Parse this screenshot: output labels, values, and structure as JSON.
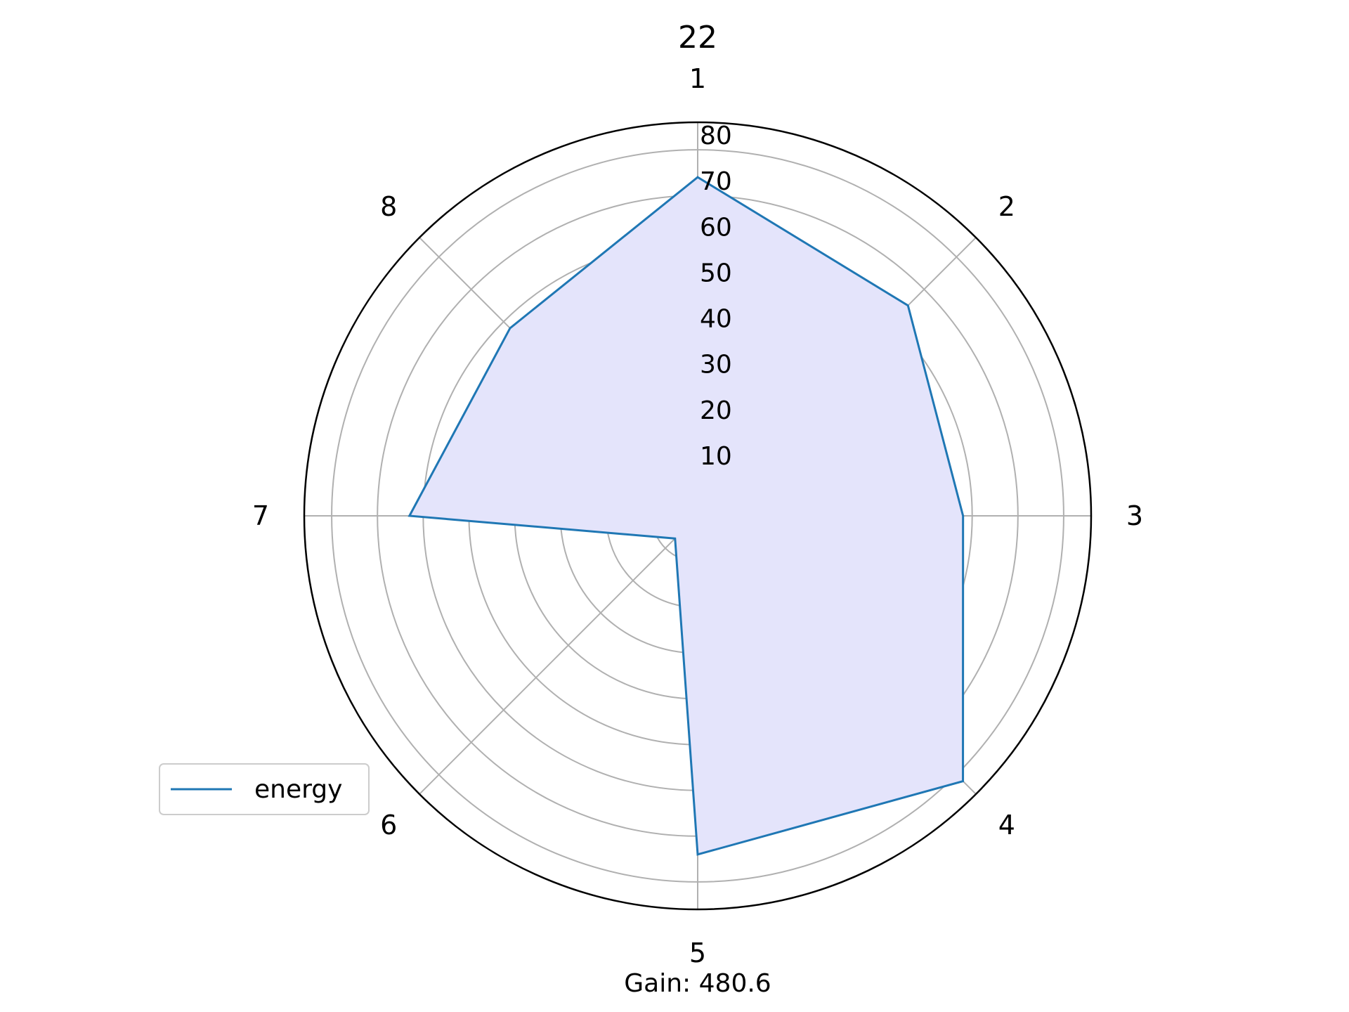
{
  "chart_data": {
    "type": "radar",
    "title": "22",
    "categories": [
      "1",
      "2",
      "3",
      "4",
      "5",
      "6",
      "7",
      "8"
    ],
    "series": [
      {
        "name": "energy",
        "values": [
          74,
          65,
          58,
          82,
          74,
          7,
          63,
          58
        ]
      }
    ],
    "radial_ticks": [
      "10",
      "20",
      "30",
      "40",
      "50",
      "60",
      "70",
      "80"
    ],
    "rlim": [
      0,
      86
    ],
    "grid": true,
    "legend_position": "lower-left",
    "footer": "Gain: 480.6",
    "colors": {
      "line": "#1f77b4",
      "fill": "#e4e4fb",
      "grid": "#b0b0b0",
      "spine": "#000000"
    }
  }
}
